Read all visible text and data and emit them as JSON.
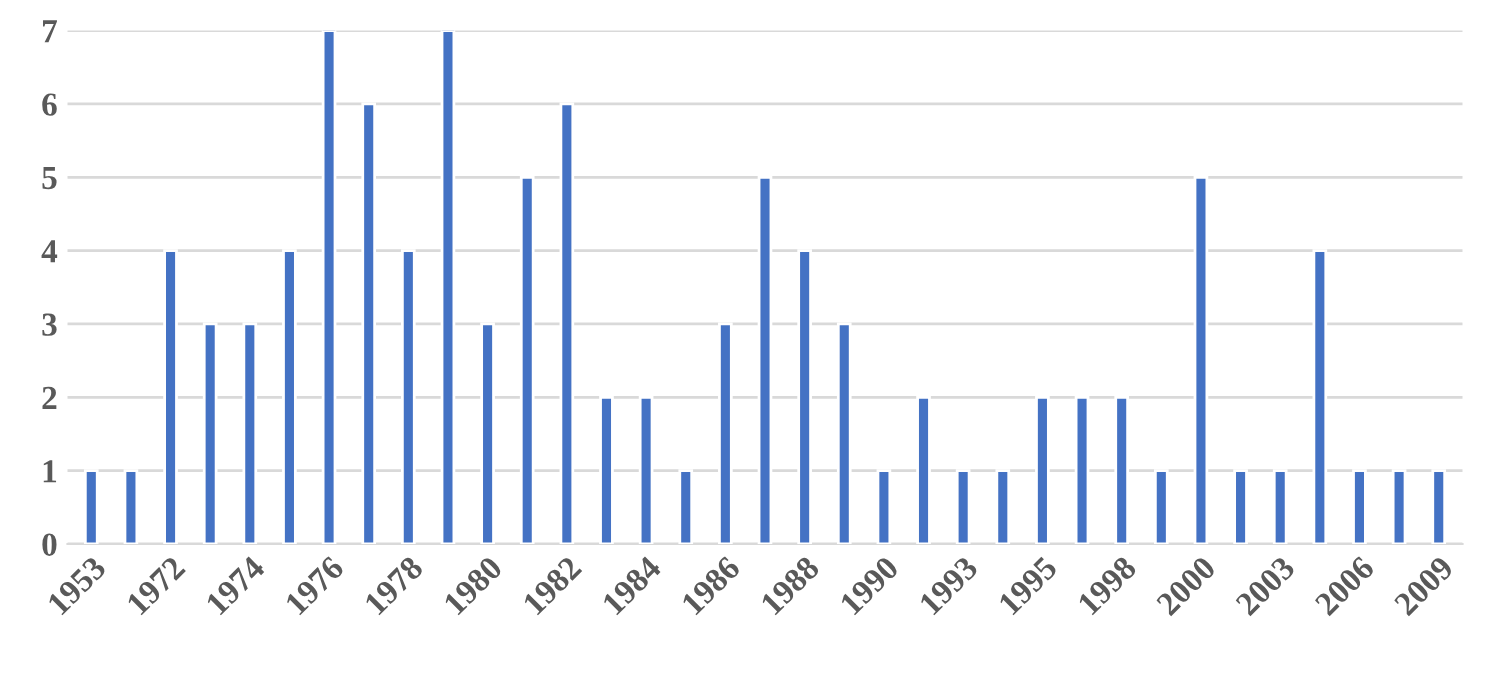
{
  "chart_data": {
    "type": "bar",
    "categories": [
      "1953",
      null,
      "1972",
      null,
      "1974",
      null,
      "1976",
      null,
      "1978",
      null,
      "1980",
      null,
      "1982",
      null,
      "1984",
      null,
      "1986",
      null,
      "1988",
      null,
      "1990",
      null,
      "1993",
      null,
      "1995",
      null,
      "1998",
      null,
      "2000",
      null,
      "2003",
      null,
      "2006",
      null,
      "2009"
    ],
    "values": [
      1,
      1,
      4,
      3,
      3,
      4,
      7,
      6,
      4,
      7,
      3,
      5,
      6,
      2,
      2,
      1,
      3,
      5,
      4,
      3,
      1,
      2,
      1,
      1,
      2,
      2,
      2,
      1,
      5,
      1,
      1,
      4,
      1,
      1,
      1
    ],
    "color": "#4472c4",
    "ylim": [
      0,
      7
    ],
    "yticks": [
      0,
      1,
      2,
      3,
      4,
      5,
      6,
      7
    ],
    "grid": "y"
  }
}
